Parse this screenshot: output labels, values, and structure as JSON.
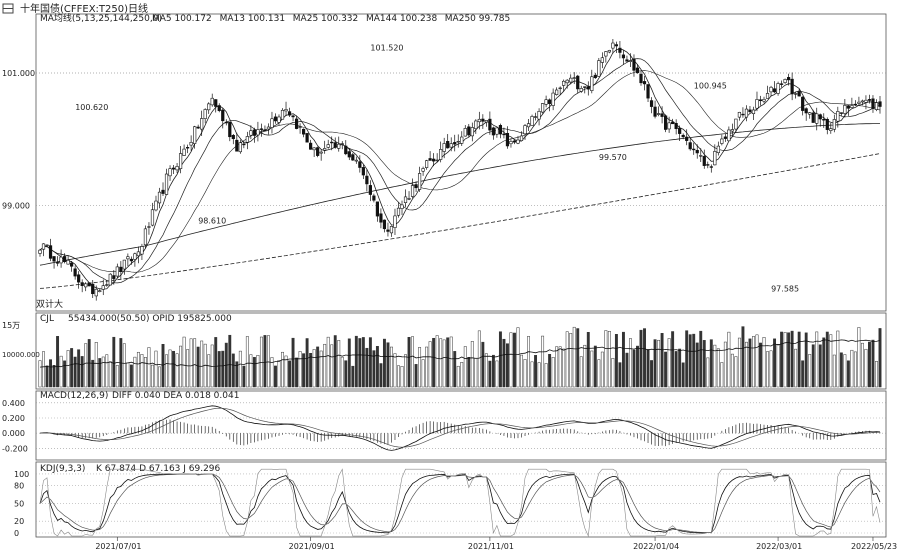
{
  "header": {
    "window_icon": "grid-icon",
    "title": "十年国债(CFFEX:T250)",
    "period": "日线"
  },
  "main_panel": {
    "label": "MA均线(5,13,25,144,250,0)",
    "ma_values": [
      {
        "label": "MA5",
        "value": "100.172"
      },
      {
        "label": "MA13",
        "value": "100.131"
      },
      {
        "label": "MA25",
        "value": "100.332"
      },
      {
        "label": "MA144",
        "value": "100.238"
      },
      {
        "label": "MA250",
        "value": "99.785"
      }
    ],
    "y_ticks": [
      "101.000",
      "99.000"
    ],
    "annotations": [
      {
        "text": "100.620"
      },
      {
        "text": "98.610"
      },
      {
        "text": "101.520"
      },
      {
        "text": "99.570"
      },
      {
        "text": "100.945"
      },
      {
        "text": "97.585"
      }
    ],
    "corner_label": "双计大"
  },
  "volume_panel": {
    "label": "CJL",
    "values": "55434.000(50.50)  OPID 195825.000",
    "y_ticks": [
      "15万",
      "10000.000"
    ]
  },
  "macd_panel": {
    "label": "MACD(12,26,9)",
    "values": "DIFF 0.040  DEA 0.018  0.041",
    "y_ticks": [
      "0.400",
      "0.200",
      "0.000",
      "-0.200"
    ]
  },
  "kdj_panel": {
    "label": "KDJ(9,3,3)",
    "values": "K 67.874  D 67.163  J 69.296",
    "y_ticks": [
      "100",
      "80",
      "50",
      "20",
      "0"
    ]
  },
  "x_axis": {
    "ticks": [
      "2021/07/01",
      "2021/09/01",
      "2021/11/01",
      "2022/01/04",
      "2022/03/01",
      "2022/05/23"
    ]
  },
  "chart_data": {
    "type": "candlestick",
    "title": "十年国债 日线",
    "ylim": [
      97.5,
      101.8
    ],
    "x_range": [
      "2021/06/15",
      "2022/05/23"
    ],
    "price_path": [
      {
        "bar": 0,
        "close": 98.4
      },
      {
        "bar": 8,
        "close": 98.1
      },
      {
        "bar": 14,
        "close": 97.7
      },
      {
        "bar": 20,
        "close": 97.9
      },
      {
        "bar": 28,
        "close": 98.3
      },
      {
        "bar": 36,
        "close": 99.4
      },
      {
        "bar": 44,
        "close": 100.1
      },
      {
        "bar": 49,
        "close": 100.62
      },
      {
        "bar": 56,
        "close": 99.9
      },
      {
        "bar": 64,
        "close": 100.2
      },
      {
        "bar": 70,
        "close": 100.5
      },
      {
        "bar": 78,
        "close": 99.8
      },
      {
        "bar": 86,
        "close": 99.9
      },
      {
        "bar": 92,
        "close": 99.5
      },
      {
        "bar": 98,
        "close": 98.61
      },
      {
        "bar": 104,
        "close": 99.1
      },
      {
        "bar": 110,
        "close": 99.6
      },
      {
        "bar": 118,
        "close": 100.0
      },
      {
        "bar": 126,
        "close": 100.3
      },
      {
        "bar": 134,
        "close": 99.9
      },
      {
        "bar": 142,
        "close": 100.4
      },
      {
        "bar": 150,
        "close": 100.9
      },
      {
        "bar": 156,
        "close": 100.8
      },
      {
        "bar": 163,
        "close": 101.52
      },
      {
        "bar": 170,
        "close": 101.0
      },
      {
        "bar": 176,
        "close": 100.3
      },
      {
        "bar": 182,
        "close": 100.1
      },
      {
        "bar": 190,
        "close": 99.57
      },
      {
        "bar": 198,
        "close": 100.3
      },
      {
        "bar": 206,
        "close": 100.6
      },
      {
        "bar": 212,
        "close": 100.945
      },
      {
        "bar": 218,
        "close": 100.4
      },
      {
        "bar": 224,
        "close": 100.2
      },
      {
        "bar": 232,
        "close": 100.6
      },
      {
        "bar": 239,
        "close": 100.5
      }
    ],
    "bar_count": 240,
    "highs_lows": [
      {
        "label": "97.585",
        "value": 97.585
      },
      {
        "label": "100.620",
        "value": 100.62
      },
      {
        "label": "98.610",
        "value": 98.61
      },
      {
        "label": "101.520",
        "value": 101.52
      },
      {
        "label": "99.570",
        "value": 99.57
      },
      {
        "label": "100.945",
        "value": 100.945
      }
    ],
    "moving_averages": [
      {
        "name": "MA5",
        "last": 100.172
      },
      {
        "name": "MA13",
        "last": 100.131
      },
      {
        "name": "MA25",
        "last": 100.332
      },
      {
        "name": "MA144",
        "last": 100.238
      },
      {
        "name": "MA250",
        "last": 99.785
      }
    ],
    "volume": {
      "ylim": [
        0,
        150000
      ],
      "tick": 10000.0
    },
    "macd": {
      "ylim": [
        -0.3,
        0.45
      ],
      "last_diff": 0.04,
      "last_dea": 0.018,
      "last_macd": 0.041
    },
    "kdj": {
      "ylim": [
        0,
        110
      ],
      "last_k": 67.874,
      "last_d": 67.163,
      "last_j": 69.296
    },
    "grid": true
  }
}
